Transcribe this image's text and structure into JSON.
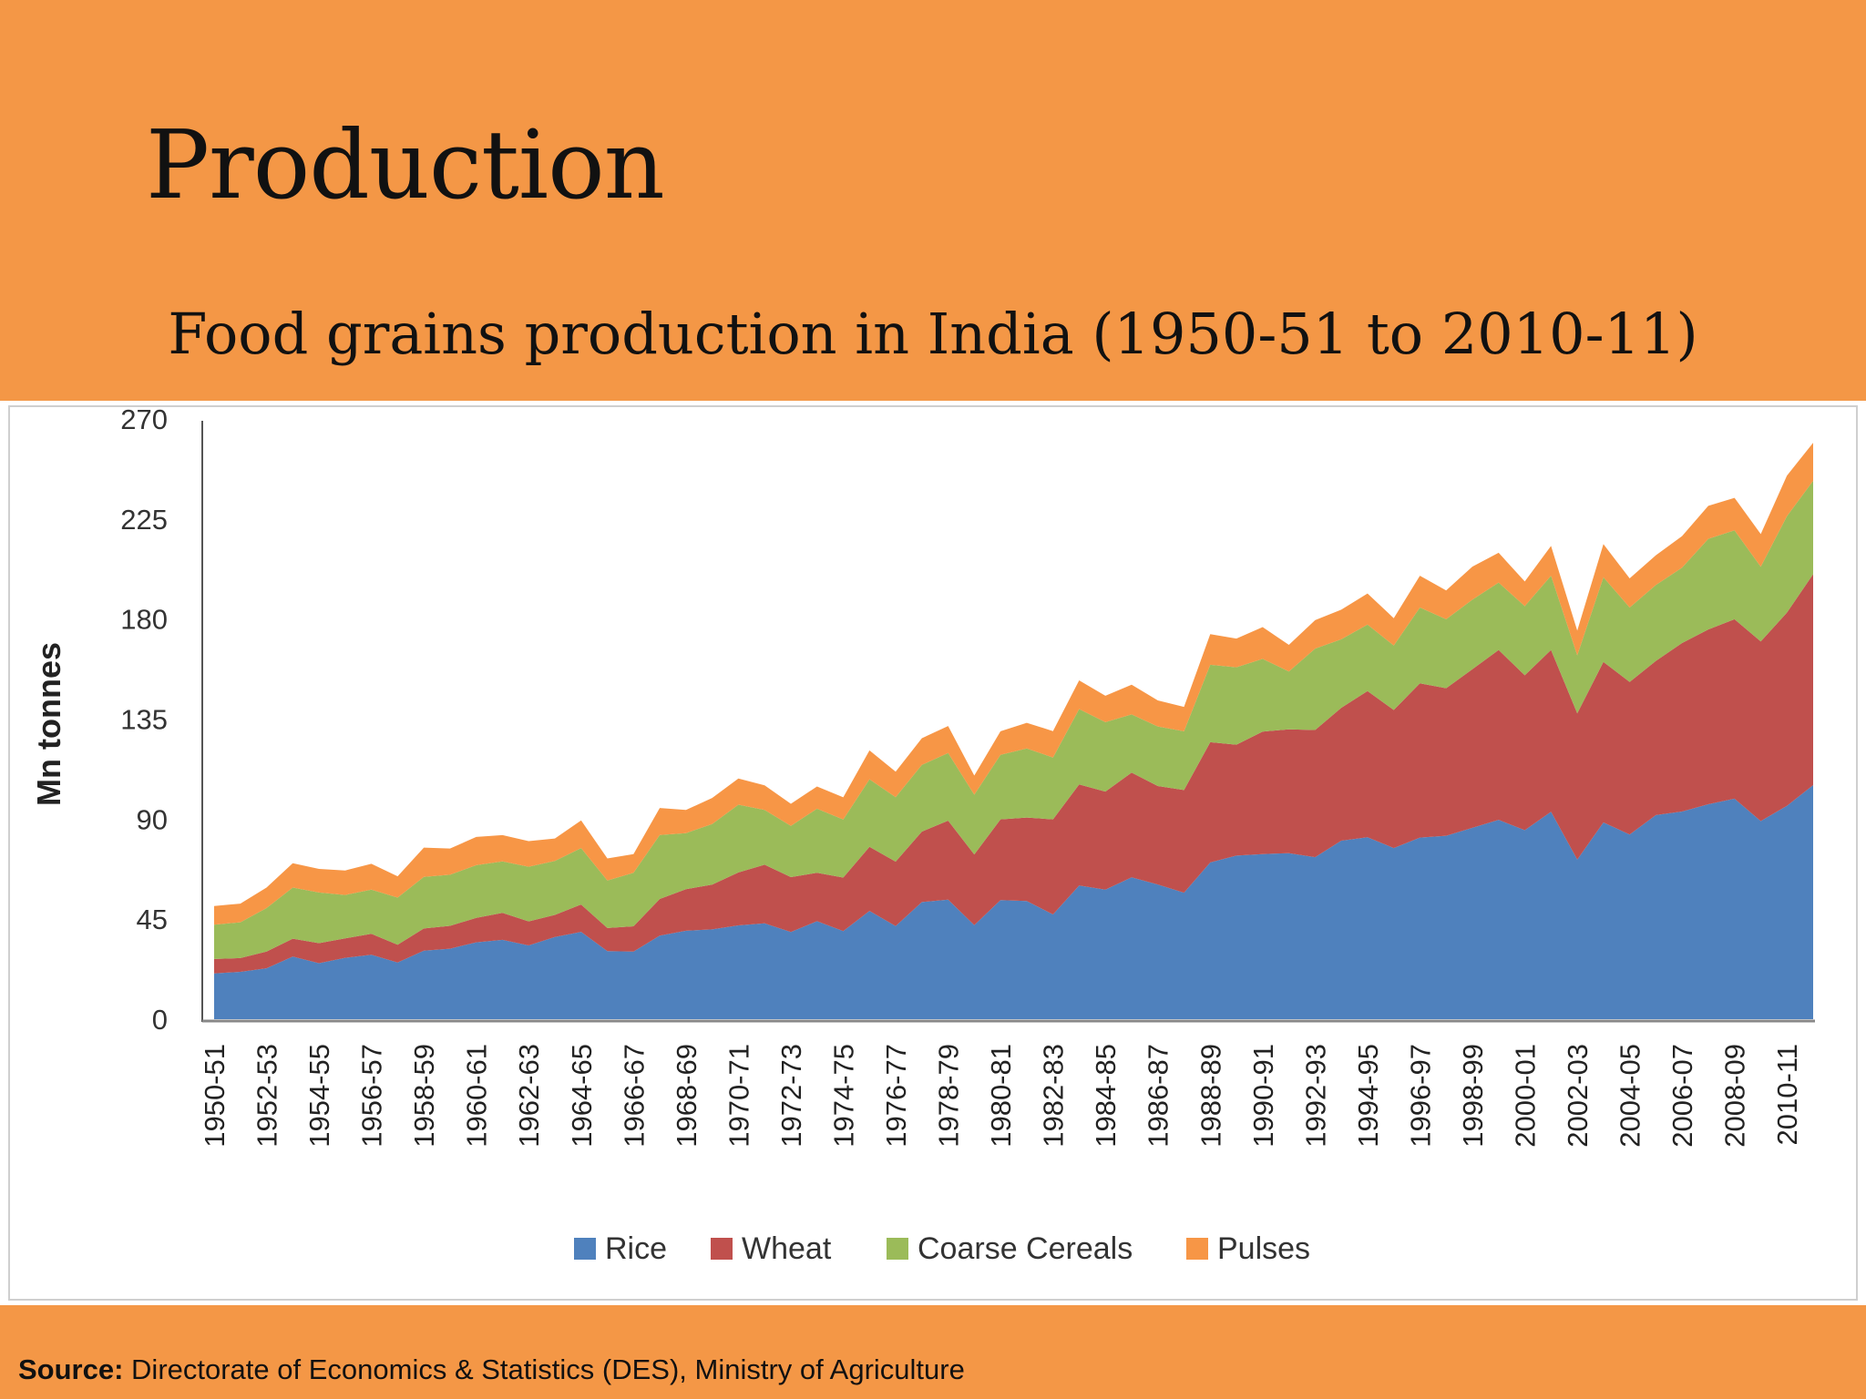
{
  "slide": {
    "title": "Production",
    "subtitle": "Food grains production in India (1950-51 to 2010-11)"
  },
  "footer": {
    "source_label": "Source:",
    "source_text": "Directorate of Economics & Statistics (DES), Ministry of Agriculture"
  },
  "colors": {
    "background": "#F49746",
    "Rice": "#4F81BD",
    "Wheat": "#C0504D",
    "Coarse Cereals": "#9BBB59",
    "Pulses": "#F79646"
  },
  "chart_data": {
    "type": "area",
    "stacked": true,
    "title": "Food grains production in India (1950-51 to 2010-11)",
    "ylabel": "Mn tonnes",
    "xlabel": "",
    "ylim": [
      0,
      270
    ],
    "yticks": [
      0,
      45,
      90,
      135,
      180,
      225,
      270
    ],
    "legend_position": "bottom",
    "grid": false,
    "x_tick_labels": [
      "1950-51",
      "1952-53",
      "1954-55",
      "1956-57",
      "1958-59",
      "1960-61",
      "1962-63",
      "1964-65",
      "1966-67",
      "1968-69",
      "1970-71",
      "1972-73",
      "1974-75",
      "1976-77",
      "1978-79",
      "1980-81",
      "1982-83",
      "1984-85",
      "1986-87",
      "1988-89",
      "1990-91",
      "1992-93",
      "1994-95",
      "1996-97",
      "1998-99",
      "2000-01",
      "2002-03",
      "2004-05",
      "2006-07",
      "2008-09",
      "2010-11"
    ],
    "x": [
      "1950-51",
      "1951-52",
      "1952-53",
      "1953-54",
      "1954-55",
      "1955-56",
      "1956-57",
      "1957-58",
      "1958-59",
      "1959-60",
      "1960-61",
      "1961-62",
      "1962-63",
      "1963-64",
      "1964-65",
      "1965-66",
      "1966-67",
      "1967-68",
      "1968-69",
      "1969-70",
      "1970-71",
      "1971-72",
      "1972-73",
      "1973-74",
      "1974-75",
      "1975-76",
      "1976-77",
      "1977-78",
      "1978-79",
      "1979-80",
      "1980-81",
      "1981-82",
      "1982-83",
      "1983-84",
      "1984-85",
      "1985-86",
      "1986-87",
      "1987-88",
      "1988-89",
      "1989-90",
      "1990-91",
      "1991-92",
      "1992-93",
      "1993-94",
      "1994-95",
      "1995-96",
      "1996-97",
      "1997-98",
      "1998-99",
      "1999-00",
      "2000-01",
      "2001-02",
      "2002-03",
      "2003-04",
      "2004-05",
      "2005-06",
      "2006-07",
      "2007-08",
      "2008-09",
      "2009-10",
      "2010-11",
      "2011-12"
    ],
    "series": [
      {
        "name": "Rice",
        "values": [
          20.6,
          21.3,
          22.9,
          28.2,
          25.2,
          27.6,
          29.0,
          25.5,
          30.8,
          31.7,
          34.6,
          35.7,
          33.2,
          37.0,
          39.3,
          30.6,
          30.4,
          37.6,
          39.8,
          40.4,
          42.2,
          43.1,
          39.2,
          44.1,
          39.6,
          48.7,
          41.9,
          52.7,
          53.8,
          42.3,
          53.6,
          53.2,
          47.1,
          60.1,
          58.3,
          63.8,
          60.6,
          56.9,
          70.5,
          73.6,
          74.3,
          74.7,
          72.9,
          80.3,
          81.8,
          77.0,
          81.7,
          82.5,
          86.1,
          89.7,
          85.0,
          93.3,
          71.8,
          88.5,
          83.1,
          91.8,
          93.4,
          96.7,
          99.2,
          89.1,
          96.0,
          105.3
        ]
      },
      {
        "name": "Wheat",
        "values": [
          6.5,
          6.2,
          7.5,
          8.0,
          9.0,
          8.8,
          9.4,
          8.0,
          10.0,
          10.3,
          11.0,
          12.1,
          10.8,
          9.9,
          12.3,
          10.4,
          11.4,
          16.5,
          18.7,
          20.1,
          23.8,
          26.4,
          24.7,
          21.8,
          24.1,
          28.8,
          29.0,
          31.7,
          35.5,
          31.8,
          36.3,
          37.5,
          42.8,
          45.5,
          44.1,
          47.1,
          44.3,
          46.2,
          54.1,
          49.9,
          55.1,
          55.7,
          57.2,
          59.8,
          65.8,
          62.1,
          69.4,
          66.4,
          71.3,
          76.4,
          69.7,
          72.8,
          65.8,
          72.2,
          68.6,
          69.4,
          75.8,
          78.6,
          80.7,
          80.8,
          86.9,
          94.9
        ]
      },
      {
        "name": "Coarse Cereals",
        "values": [
          15.4,
          16.1,
          19.6,
          23.0,
          22.8,
          19.5,
          19.9,
          21.2,
          23.2,
          23.0,
          23.7,
          23.2,
          24.6,
          24.3,
          25.4,
          21.4,
          24.1,
          28.8,
          25.2,
          27.3,
          30.5,
          24.6,
          23.1,
          28.8,
          26.1,
          30.4,
          29.0,
          30.0,
          30.4,
          26.9,
          29.0,
          31.1,
          27.8,
          33.9,
          31.2,
          26.2,
          26.8,
          26.4,
          34.8,
          34.8,
          32.7,
          26.0,
          36.6,
          30.8,
          29.9,
          29.0,
          34.1,
          31.0,
          31.3,
          30.3,
          31.1,
          33.4,
          26.1,
          38.1,
          33.5,
          34.1,
          33.9,
          40.8,
          40.0,
          33.6,
          43.4,
          42.0
        ]
      },
      {
        "name": "Pulses",
        "values": [
          8.4,
          8.4,
          9.2,
          11.0,
          10.6,
          11.0,
          11.6,
          9.6,
          13.2,
          11.8,
          12.7,
          11.8,
          11.5,
          10.1,
          12.4,
          9.9,
          8.4,
          12.1,
          10.4,
          11.7,
          11.8,
          11.1,
          9.9,
          10.0,
          10.0,
          13.0,
          11.4,
          12.0,
          12.2,
          8.6,
          10.6,
          11.5,
          11.9,
          12.9,
          11.9,
          13.4,
          11.7,
          11.0,
          13.8,
          12.9,
          14.3,
          12.0,
          12.8,
          13.3,
          14.0,
          12.3,
          14.3,
          13.0,
          14.9,
          13.4,
          11.1,
          13.4,
          11.1,
          14.9,
          13.1,
          13.4,
          14.2,
          14.8,
          14.6,
          14.7,
          18.2,
          17.1
        ]
      }
    ],
    "legend": [
      "Rice",
      "Wheat",
      "Coarse Cereals",
      "Pulses"
    ]
  }
}
